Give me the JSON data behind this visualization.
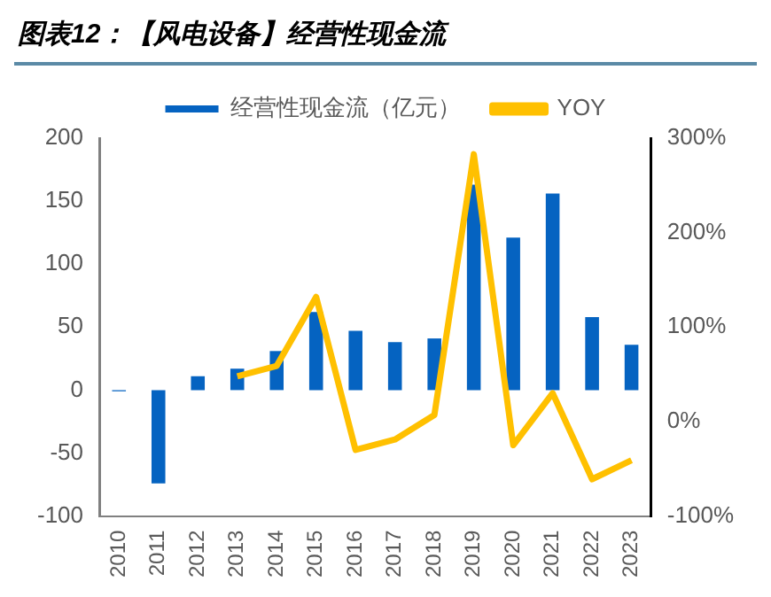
{
  "chart_data": {
    "type": "bar",
    "title": "图表12：【风电设备】经营性现金流",
    "categories": [
      "2010",
      "2011",
      "2012",
      "2013",
      "2014",
      "2015",
      "2016",
      "2017",
      "2018",
      "2019",
      "2020",
      "2021",
      "2022",
      "2023"
    ],
    "series": [
      {
        "name": "经营性现金流（亿元）",
        "type": "bar",
        "color": "#0563c1",
        "values": [
          -1,
          -74,
          11,
          17,
          31,
          62,
          47,
          38,
          41,
          163,
          121,
          156,
          58,
          36
        ]
      },
      {
        "name": "YOY",
        "type": "line",
        "axis": "y2",
        "color": "#ffc000",
        "values": [
          null,
          null,
          null,
          48,
          59,
          132,
          -30,
          -19,
          7,
          283,
          -25,
          30,
          -61,
          -41
        ]
      }
    ],
    "ylim": [
      -100,
      200
    ],
    "yticks": [
      -100,
      -50,
      0,
      50,
      100,
      150,
      200
    ],
    "y2lim": [
      -100,
      300
    ],
    "y2ticks": [
      {
        "value": -100,
        "label": "-100%"
      },
      {
        "value": 0,
        "label": "0%"
      },
      {
        "value": 100,
        "label": "100%"
      },
      {
        "value": 200,
        "label": "200%"
      },
      {
        "value": 300,
        "label": "300%"
      }
    ],
    "grid": false,
    "legend": "top",
    "marker": "none"
  }
}
